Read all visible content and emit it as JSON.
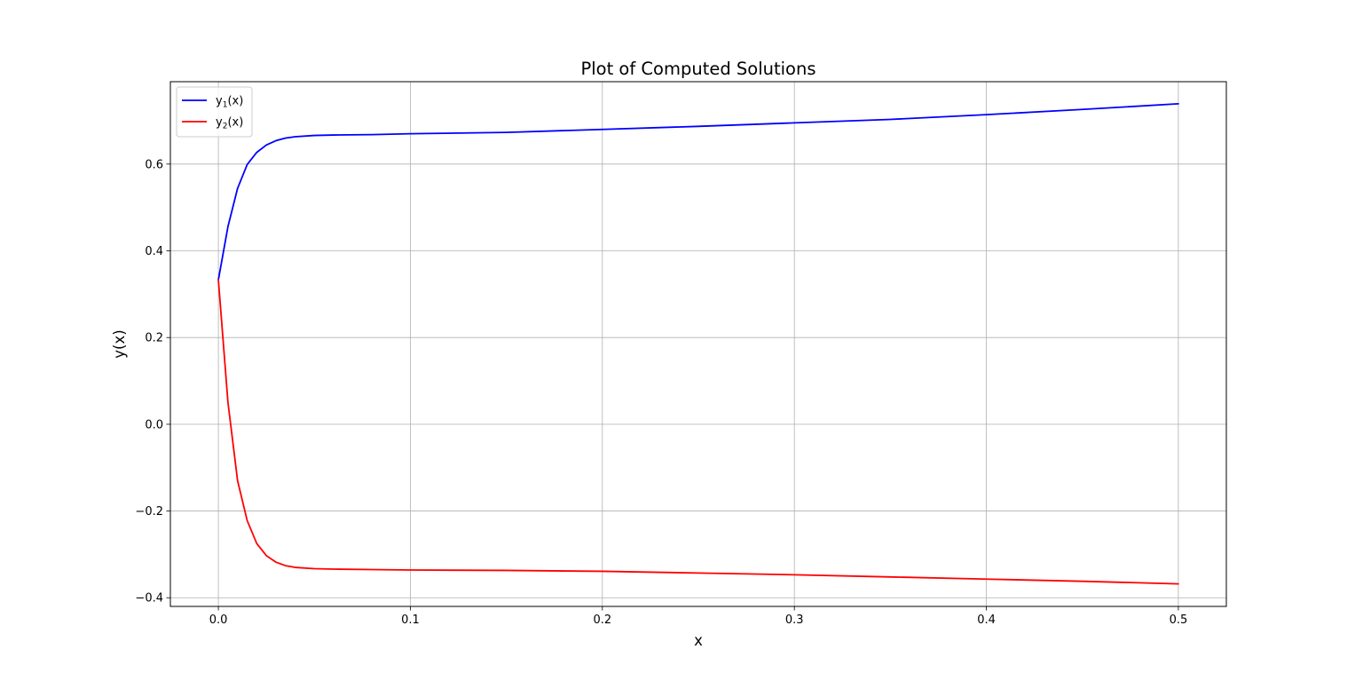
{
  "chart_data": {
    "type": "line",
    "title": "Plot of Computed Solutions",
    "xlabel": "x",
    "ylabel": "y(x)",
    "xlim": [
      -0.025,
      0.525
    ],
    "ylim": [
      -0.42,
      0.79
    ],
    "xticks": [
      0.0,
      0.1,
      0.2,
      0.3,
      0.4,
      0.5
    ],
    "xtick_labels": [
      "0.0",
      "0.1",
      "0.2",
      "0.3",
      "0.4",
      "0.5"
    ],
    "yticks": [
      -0.4,
      -0.2,
      0.0,
      0.2,
      0.4,
      0.6
    ],
    "ytick_labels": [
      "−0.4",
      "−0.2",
      "0.0",
      "0.2",
      "0.4",
      "0.6"
    ],
    "grid": true,
    "legend_position": "top-left",
    "series": [
      {
        "label": "y",
        "subscript": "1",
        "suffix": "(x)",
        "color": "#0000ff",
        "x": [
          0.0,
          0.005,
          0.01,
          0.015,
          0.02,
          0.025,
          0.03,
          0.035,
          0.04,
          0.05,
          0.06,
          0.08,
          0.1,
          0.15,
          0.2,
          0.25,
          0.3,
          0.35,
          0.4,
          0.45,
          0.5
        ],
        "y": [
          0.333,
          0.456,
          0.544,
          0.599,
          0.627,
          0.644,
          0.654,
          0.66,
          0.663,
          0.666,
          0.667,
          0.668,
          0.67,
          0.673,
          0.68,
          0.687,
          0.695,
          0.703,
          0.714,
          0.726,
          0.739
        ]
      },
      {
        "label": "y",
        "subscript": "2",
        "suffix": "(x)",
        "color": "#ff0000",
        "x": [
          0.0,
          0.005,
          0.01,
          0.015,
          0.02,
          0.025,
          0.03,
          0.035,
          0.04,
          0.05,
          0.06,
          0.08,
          0.1,
          0.15,
          0.2,
          0.25,
          0.3,
          0.35,
          0.4,
          0.45,
          0.5
        ],
        "y": [
          0.333,
          0.05,
          -0.13,
          -0.222,
          -0.275,
          -0.303,
          -0.318,
          -0.326,
          -0.33,
          -0.333,
          -0.334,
          -0.335,
          -0.336,
          -0.337,
          -0.339,
          -0.343,
          -0.347,
          -0.352,
          -0.357,
          -0.362,
          -0.368
        ]
      }
    ]
  }
}
